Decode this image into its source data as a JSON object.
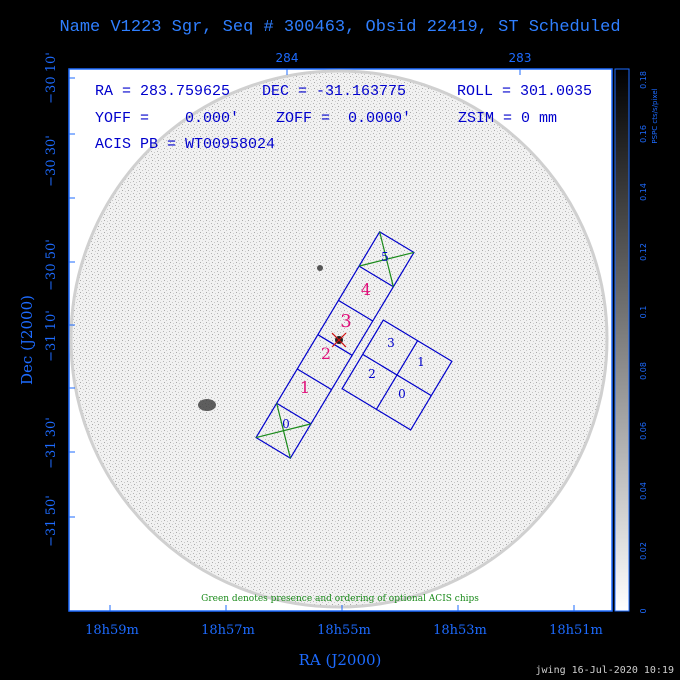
{
  "title": "Name V1223 Sgr, Seq # 300463, Obsid 22419, ST Scheduled",
  "header_lines": [
    {
      "ra": "RA = 283.759625",
      "dec": "DEC = -31.163775",
      "roll": "ROLL = 301.0035"
    },
    {
      "yoff": "YOFF =    0.000'",
      "zoff": "ZOFF =  0.0000'",
      "zsim": "ZSIM = 0 mm"
    },
    {
      "acis": "ACIS PB = WT00958024"
    }
  ],
  "top_axis_labels": [
    "284",
    "283"
  ],
  "dec_ticks": [
    "−30 10'",
    "−30 30'",
    "−30 50'",
    "−31 10'",
    "−31 30'",
    "−31 50'"
  ],
  "ra_ticks": [
    "18h59m",
    "18h57m",
    "18h55m",
    "18h53m",
    "18h51m"
  ],
  "x_axis_label": "RA (J2000)",
  "y_axis_label": "Dec (J2000)",
  "colorbar": {
    "label": "PSPC cts/s/pixel",
    "ticks": [
      "0",
      "0.02",
      "0.04",
      "0.06",
      "0.08",
      "0.1",
      "0.12",
      "0.14",
      "0.16",
      "0.18"
    ]
  },
  "chip_labels_s": [
    "0",
    "1",
    "2",
    "3",
    "4",
    "5"
  ],
  "chip_labels_i": [
    "0",
    "1",
    "2",
    "3"
  ],
  "note": "Green denotes presence and ordering of optional ACIS chips",
  "footer": "jwing 16-Jul-2020 10:19",
  "colors": {
    "axis_blue": "#1d6bff",
    "chip_blue": "#0000cc",
    "chip_label_magenta": "#e0107a",
    "optional_green": "#1a8a1a",
    "target_red": "#d01010"
  }
}
